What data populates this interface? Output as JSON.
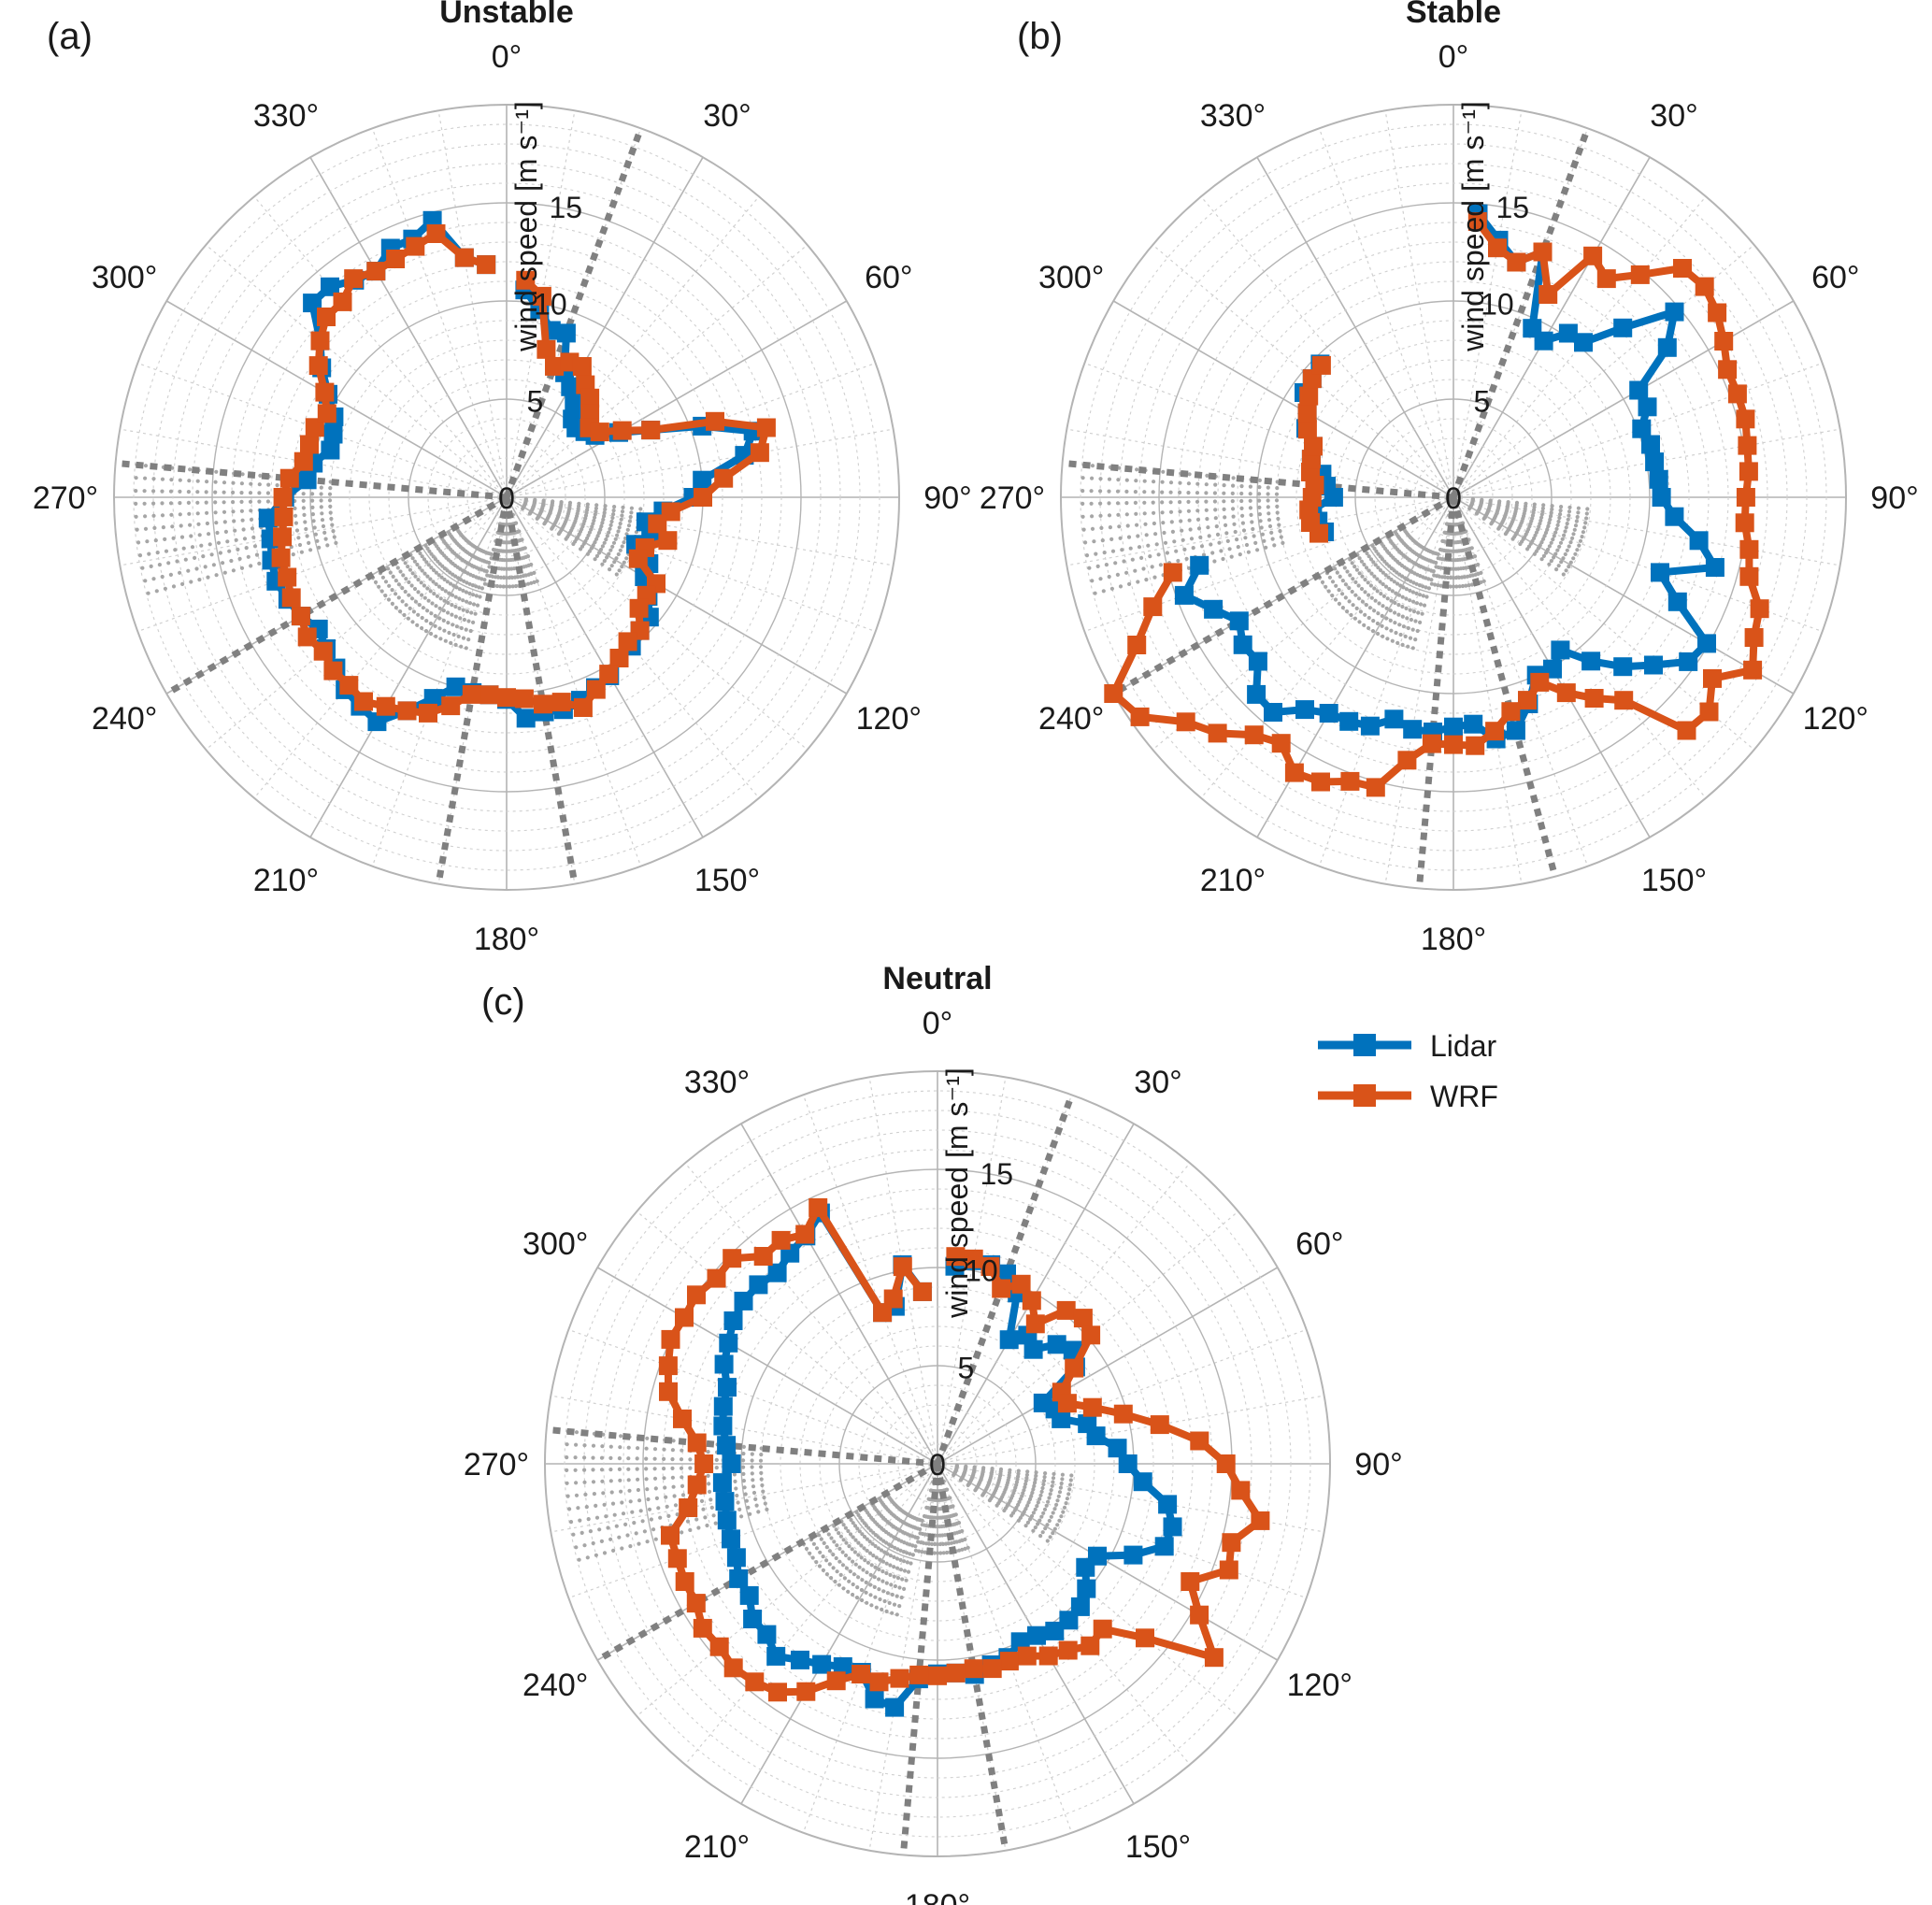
{
  "colors": {
    "lidar": "#0072bd",
    "wrf": "#d95319",
    "grid_major": "#b4b4b4",
    "grid_minor": "#d0d0d0",
    "sector": "#808080",
    "dots": "#a6a6a6"
  },
  "legend": {
    "lidar_label": "Lidar",
    "wrf_label": "WRF",
    "placement": "outside-right of panel (c)"
  },
  "chart_data": [
    {
      "panel": "(a)",
      "title": "Unstable",
      "type": "polar-line",
      "r_axis_label": "wind speed [m s⁻¹]",
      "r_ticks": [
        0,
        5,
        10,
        15
      ],
      "r_tick_labels": [
        "0",
        "5",
        "10",
        "15"
      ],
      "r_lim": [
        0,
        20
      ],
      "theta_ticks": [
        0,
        30,
        60,
        90,
        120,
        150,
        180,
        210,
        240,
        270,
        300,
        330
      ],
      "theta_tick_labels": [
        "0°",
        "30°",
        "60°",
        "90°",
        "120°",
        "150°",
        "180°",
        "210°",
        "240°",
        "270°",
        "300°",
        "330°"
      ],
      "theta_zero": "north",
      "theta_direction": "clockwise",
      "sector_lines_deg": [
        20,
        170,
        190,
        240,
        275
      ],
      "series": [
        {
          "name": "Lidar",
          "theta": [
            5,
            10,
            15,
            20,
            25,
            30,
            35,
            40,
            45,
            50,
            55,
            60,
            65,
            70,
            75,
            80,
            85,
            90,
            95,
            100,
            105,
            110,
            115,
            120,
            125,
            130,
            135,
            140,
            145,
            150,
            155,
            160,
            165,
            170,
            175,
            180,
            185,
            190,
            195,
            200,
            205,
            210,
            215,
            220,
            225,
            230,
            235,
            240,
            245,
            250,
            255,
            260,
            265,
            270,
            275,
            280,
            285,
            290,
            295,
            300,
            305,
            310,
            315,
            320,
            325,
            330,
            335,
            340,
            345,
            350,
            355
          ],
          "r": [
            10.6,
            9.7,
            8.8,
            8.9,
            7.0,
            6.5,
            6.0,
            5.2,
            5.0,
            5.2,
            5.5,
            6.6,
            8.1,
            10.6,
            13.0,
            12.3,
            10.0,
            9.5,
            8.0,
            7.2,
            7.6,
            7.0,
            8.0,
            8.1,
            8.8,
            9.5,
            9.6,
            9.9,
            10.0,
            10.5,
            10.7,
            11.0,
            11.2,
            11.1,
            11.3,
            10.3,
            10.1,
            10.1,
            10.0,
            10.9,
            12.0,
            13.2,
            13.0,
            12.8,
            12.3,
            12.0,
            11.7,
            12.1,
            12.3,
            12.5,
            12.4,
            12.2,
            12.2,
            11.3,
            10.2,
            10.0,
            9.3,
            9.4,
            9.7,
            10.5,
            11.5,
            12.4,
            14.0,
            14.0,
            13.5,
            13.3,
            14.0,
            14.0,
            14.6,
            12.4,
            11.9
          ]
        },
        {
          "name": "WRF",
          "theta": [
            5,
            10,
            15,
            20,
            25,
            30,
            35,
            40,
            45,
            50,
            55,
            60,
            65,
            70,
            75,
            80,
            85,
            90,
            95,
            100,
            105,
            110,
            115,
            120,
            125,
            130,
            135,
            140,
            145,
            150,
            155,
            160,
            165,
            170,
            175,
            180,
            185,
            190,
            195,
            200,
            205,
            210,
            215,
            220,
            225,
            230,
            235,
            240,
            245,
            250,
            255,
            260,
            265,
            270,
            275,
            280,
            285,
            290,
            295,
            300,
            305,
            310,
            315,
            320,
            325,
            330,
            335,
            340,
            345,
            350,
            355
          ],
          "r": [
            11.1,
            10.4,
            7.8,
            7.1,
            7.6,
            7.7,
            7.0,
            6.6,
            6.0,
            5.5,
            5.8,
            6.8,
            8.1,
            11.3,
            13.7,
            13.1,
            11.1,
            10.0,
            8.4,
            7.8,
            8.5,
            7.5,
            7.4,
            8.8,
            8.7,
            8.8,
            9.6,
            9.6,
            10.0,
            10.4,
            10.8,
            11.4,
            10.8,
            10.7,
            10.3,
            10.2,
            10.1,
            10.2,
            11.0,
            11.7,
            12.0,
            12.3,
            12.7,
            12.5,
            12.5,
            12.2,
            12.4,
            12.1,
            12.1,
            11.9,
            11.9,
            11.6,
            11.4,
            11.4,
            11.1,
            10.5,
            10.4,
            10.4,
            10.1,
            10.7,
            11.7,
            12.4,
            13.0,
            13.0,
            13.6,
            13.3,
            13.4,
            13.6,
            13.9,
            12.4,
            11.9
          ]
        }
      ]
    },
    {
      "panel": "(b)",
      "title": "Stable",
      "type": "polar-line",
      "r_axis_label": "wind speed [m s⁻¹]",
      "r_ticks": [
        0,
        5,
        10,
        15
      ],
      "r_tick_labels": [
        "0",
        "5",
        "10",
        "15"
      ],
      "r_lim": [
        0,
        20
      ],
      "theta_ticks": [
        0,
        30,
        60,
        90,
        120,
        150,
        180,
        210,
        240,
        270,
        300,
        330
      ],
      "theta_tick_labels": [
        "0°",
        "30°",
        "60°",
        "90°",
        "120°",
        "150°",
        "180°",
        "210°",
        "240°",
        "270°",
        "300°",
        "330°"
      ],
      "theta_zero": "north",
      "theta_direction": "clockwise",
      "sector_lines_deg": [
        20,
        165,
        185,
        240,
        275
      ],
      "series": [
        {
          "name": "Lidar",
          "theta": [
            5,
            10,
            15,
            20,
            25,
            30,
            35,
            40,
            45,
            50,
            55,
            60,
            65,
            70,
            75,
            80,
            85,
            90,
            95,
            100,
            105,
            110,
            115,
            120,
            125,
            130,
            135,
            140,
            145,
            150,
            155,
            160,
            165,
            170,
            175,
            180,
            185,
            190,
            195,
            200,
            205,
            210,
            215,
            220,
            225,
            230,
            235,
            240,
            245,
            250,
            255
          ],
          "r": [
            14.5,
            13.3,
            12.4,
            13.3,
            9.5,
            9.2,
            10.2,
            10.3,
            12.2,
            14.7,
            13.3,
            10.9,
            10.9,
            10.2,
            10.4,
            10.4,
            10.5,
            10.6,
            11.3,
            12.7,
            13.8,
            11.2,
            12.6,
            14.9,
            14.6,
            13.3,
            12.2,
            10.9,
            9.5,
            10.1,
            10.0,
            11.2,
            12.3,
            12.5,
            11.6,
            11.7,
            12.0,
            12.0,
            11.7,
            12.4,
            12.6,
            12.7,
            13.2,
            14.3,
            14.2,
            13.0,
            13.1,
            12.6,
            13.5,
            14.6,
            13.4
          ]
        },
        {
          "name": "WRF",
          "theta": [
            5,
            10,
            15,
            20,
            25,
            30,
            35,
            40,
            45,
            50,
            55,
            60,
            65,
            70,
            75,
            80,
            85,
            90,
            95,
            100,
            105,
            110,
            115,
            120,
            125,
            130,
            135,
            140,
            145,
            150,
            155,
            160,
            165,
            170,
            175,
            180,
            185,
            190,
            195,
            200,
            205,
            210,
            215,
            220,
            225,
            230,
            235,
            240,
            245,
            250,
            255
          ],
          "r": [
            14.1,
            12.9,
            12.4,
            13.3,
            11.4,
            14.2,
            13.6,
            14.8,
            16.5,
            16.7,
            16.4,
            15.9,
            15.4,
            15.4,
            15.4,
            15.2,
            15.1,
            14.9,
            14.9,
            15.3,
            15.6,
            16.6,
            16.9,
            17.6,
            16.1,
            17.0,
            16.8,
            13.5,
            12.5,
            11.5,
            10.4,
            11.0,
            11.3,
            12.1,
            12.7,
            12.6,
            12.6,
            13.6,
            15.3,
            15.4,
            16.0,
            16.2,
            15.3,
            15.8,
            17.0,
            17.8,
            19.5,
            20.0,
            17.8,
            16.3,
            14.8
          ]
        },
        {
          "name": "Lidar",
          "theta": [
            255,
            260,
            265,
            270,
            275,
            280,
            285,
            290,
            295,
            300,
            305,
            310,
            315
          ],
          "r": [
            6.8,
            7.0,
            7.2,
            6.1,
            6.5,
            6.8,
            7.5,
            7.6,
            8.3,
            8.6,
            9.3,
            9.4,
            9.6
          ]
        },
        {
          "name": "WRF",
          "theta": [
            255,
            260,
            265,
            270,
            275,
            280,
            285,
            290,
            295,
            300,
            305,
            310,
            315
          ],
          "r": [
            7.1,
            7.4,
            7.4,
            7.2,
            7.1,
            7.4,
            7.5,
            7.6,
            8.2,
            8.6,
            9.0,
            9.4,
            9.5
          ]
        }
      ]
    },
    {
      "panel": "(c)",
      "title": "Neutral",
      "type": "polar-line",
      "r_axis_label": "wind speed [m s⁻¹]",
      "r_ticks": [
        0,
        5,
        10,
        15
      ],
      "r_tick_labels": [
        "0",
        "5",
        "10",
        "15"
      ],
      "r_lim": [
        0,
        20
      ],
      "theta_ticks": [
        0,
        30,
        60,
        90,
        120,
        150,
        180,
        210,
        240,
        270,
        300,
        330
      ],
      "theta_tick_labels": [
        "0°",
        "30°",
        "60°",
        "90°",
        "120°",
        "150°",
        "180°",
        "210°",
        "240°",
        "270°",
        "300°",
        "330°"
      ],
      "theta_zero": "north",
      "theta_direction": "clockwise",
      "sector_lines_deg": [
        20,
        170,
        185,
        240,
        275
      ],
      "series": [
        {
          "name": "Lidar",
          "theta": [
            5,
            10,
            15,
            20,
            25,
            30,
            35,
            40,
            45,
            50,
            55,
            60,
            65,
            70,
            75,
            80,
            85,
            90,
            95,
            100,
            105,
            110,
            115,
            120,
            125,
            130,
            135,
            140,
            145,
            150,
            155,
            160,
            165,
            170,
            175,
            180,
            185,
            190,
            195,
            200,
            205,
            210,
            215,
            220,
            225,
            230,
            235,
            240,
            245,
            250,
            255,
            260,
            265,
            270,
            275,
            280,
            285,
            290,
            295,
            300,
            305,
            310,
            315,
            320,
            325,
            330,
            335,
            340,
            345,
            350,
            355
          ],
          "r": [
            10.1,
            10.5,
            10.5,
            10.3,
            9.6,
            7.3,
            8.0,
            7.6,
            8.6,
            9.0,
            8.6,
            6.2,
            6.6,
            6.7,
            7.9,
            8.2,
            9.2,
            9.7,
            10.5,
            11.9,
            12.4,
            12.3,
            11.0,
            9.4,
            9.2,
            9.9,
            10.3,
            10.4,
            10.4,
            10.1,
            10.0,
            10.5,
            10.6,
            10.9,
            10.7,
            10.7,
            11.0,
            12.6,
            12.4,
            11.3,
            11.4,
            11.8,
            12.2,
            12.8,
            12.3,
            12.3,
            11.7,
            11.7,
            11.3,
            11.2,
            11.1,
            11.0,
            11.0,
            10.5,
            10.8,
            11.1,
            11.3,
            11.4,
            12.0,
            12.3,
            12.7,
            12.9,
            12.9,
            12.7,
            13.1,
            13.4,
            14.1,
            8.2,
            8.3,
            10.3,
            8.8
          ]
        },
        {
          "name": "WRF",
          "theta": [
            5,
            10,
            15,
            20,
            25,
            30,
            35,
            40,
            45,
            50,
            55,
            60,
            65,
            70,
            75,
            80,
            85,
            90,
            95,
            100,
            105,
            110,
            115,
            120,
            125,
            130,
            135,
            140,
            145,
            150,
            155,
            160,
            165,
            170,
            175,
            180,
            185,
            190,
            195,
            200,
            205,
            210,
            215,
            220,
            225,
            230,
            235,
            240,
            245,
            250,
            255,
            260,
            265,
            270,
            275,
            280,
            285,
            290,
            295,
            300,
            305,
            310,
            315,
            320,
            325,
            330,
            335,
            340,
            345,
            350,
            355
          ],
          "r": [
            10.6,
            10.6,
            10.4,
            9.5,
            10.1,
            9.6,
            8.7,
            10.2,
            10.5,
            10.2,
            8.5,
            7.3,
            7.3,
            8.4,
            9.8,
            11.5,
            13.4,
            14.7,
            15.5,
            16.7,
            15.5,
            15.8,
            14.2,
            15.4,
            17.2,
            13.8,
            11.9,
            12.1,
            11.6,
            11.3,
            10.8,
            10.7,
            10.8,
            10.6,
            10.7,
            10.8,
            10.8,
            11.1,
            11.5,
            11.4,
            12.2,
            13.4,
            14.2,
            14.5,
            14.7,
            14.5,
            14.6,
            14.2,
            14.2,
            14.1,
            14.1,
            12.9,
            12.3,
            11.9,
            12.3,
            13.2,
            14.2,
            14.6,
            15.0,
            14.9,
            15.0,
            14.7,
            14.8,
            13.8,
            13.9,
            13.5,
            14.4,
            8.2,
            8.7,
            10.2,
            8.8
          ]
        }
      ]
    }
  ]
}
